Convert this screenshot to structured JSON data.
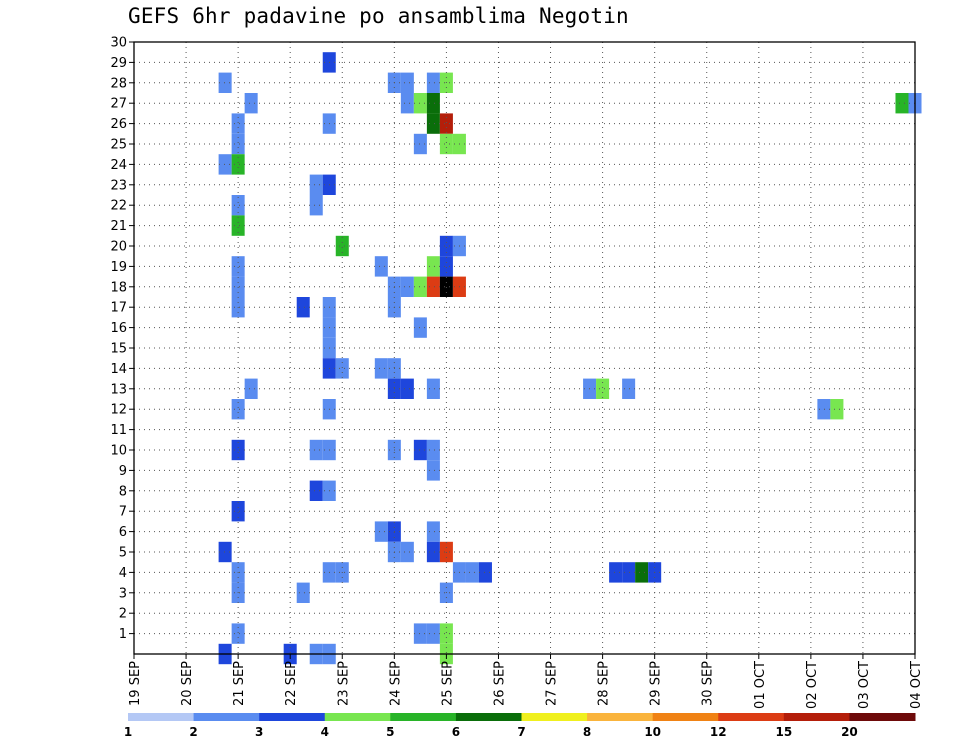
{
  "chart_data": {
    "type": "heatmap",
    "title": "GEFS 6hr padavine po ansamblima Negotin",
    "x_tick_labels": [
      "19 SEP",
      "20 SEP",
      "21 SEP",
      "22 SEP",
      "23 SEP",
      "24 SEP",
      "25 SEP",
      "26 SEP",
      "27 SEP",
      "28 SEP",
      "29 SEP",
      "30 SEP",
      "01 OCT",
      "02 OCT",
      "03 OCT",
      "04 OCT"
    ],
    "y_tick_labels": [
      "1",
      "2",
      "3",
      "4",
      "5",
      "6",
      "7",
      "8",
      "9",
      "10",
      "11",
      "12",
      "13",
      "14",
      "15",
      "16",
      "17",
      "18",
      "19",
      "20",
      "21",
      "22",
      "23",
      "24",
      "25",
      "26",
      "27",
      "28",
      "29",
      "30"
    ],
    "xlim_days": [
      0,
      15
    ],
    "ylim": [
      0,
      30
    ],
    "time_step_hours": 6,
    "grid": "dotted",
    "colorbar": {
      "levels": [
        "1",
        "2",
        "3",
        "4",
        "5",
        "6",
        "7",
        "8",
        "10",
        "12",
        "15",
        "20"
      ],
      "colors": [
        "#b4c8f5",
        "#5a8cf0",
        "#1e46dc",
        "#78e650",
        "#28b428",
        "#0a6e0a",
        "#f0f01e",
        "#fab43c",
        "#f08214",
        "#dc3c14",
        "#b41e0a",
        "#6e0a0a"
      ]
    },
    "cells": [
      [
        1.75,
        28,
        1
      ],
      [
        1.75,
        24,
        1
      ],
      [
        1.75,
        5,
        2
      ],
      [
        1.75,
        0,
        2
      ],
      [
        2.0,
        26,
        1
      ],
      [
        2.0,
        25,
        1
      ],
      [
        2.0,
        24,
        4
      ],
      [
        2.0,
        22,
        1
      ],
      [
        2.0,
        21,
        4
      ],
      [
        2.0,
        19,
        1
      ],
      [
        2.0,
        18,
        1
      ],
      [
        2.0,
        17,
        1
      ],
      [
        2.0,
        12,
        1
      ],
      [
        2.0,
        10,
        2
      ],
      [
        2.0,
        7,
        2
      ],
      [
        2.0,
        4,
        1
      ],
      [
        2.0,
        3,
        1
      ],
      [
        2.0,
        1,
        1
      ],
      [
        2.25,
        27,
        1
      ],
      [
        2.25,
        13,
        1
      ],
      [
        3.0,
        0,
        2
      ],
      [
        3.25,
        17,
        2
      ],
      [
        3.5,
        23,
        1
      ],
      [
        3.5,
        22,
        1
      ],
      [
        3.5,
        10,
        1
      ],
      [
        3.5,
        8,
        2
      ],
      [
        3.5,
        0,
        1
      ],
      [
        3.25,
        3,
        1
      ],
      [
        3.75,
        29,
        2
      ],
      [
        3.75,
        26,
        1
      ],
      [
        3.75,
        23,
        2
      ],
      [
        3.75,
        17,
        1
      ],
      [
        3.75,
        16,
        1
      ],
      [
        3.75,
        15,
        1
      ],
      [
        3.75,
        14,
        2
      ],
      [
        3.75,
        12,
        1
      ],
      [
        3.75,
        10,
        1
      ],
      [
        3.75,
        8,
        1
      ],
      [
        3.75,
        4,
        1
      ],
      [
        3.75,
        0,
        1
      ],
      [
        4.0,
        20,
        4
      ],
      [
        4.0,
        14,
        1
      ],
      [
        4.0,
        4,
        1
      ],
      [
        4.75,
        19,
        1
      ],
      [
        4.75,
        14,
        1
      ],
      [
        5.0,
        14,
        1
      ],
      [
        4.75,
        6,
        1
      ],
      [
        5.0,
        28,
        1
      ],
      [
        5.0,
        18,
        1
      ],
      [
        5.0,
        17,
        1
      ],
      [
        5.0,
        13,
        2
      ],
      [
        5.0,
        10,
        1
      ],
      [
        5.0,
        6,
        2
      ],
      [
        5.0,
        5,
        1
      ],
      [
        5.25,
        28,
        1
      ],
      [
        5.25,
        27,
        1
      ],
      [
        5.25,
        18,
        1
      ],
      [
        5.25,
        13,
        2
      ],
      [
        5.25,
        5,
        1
      ],
      [
        5.5,
        27,
        3
      ],
      [
        5.5,
        25,
        1
      ],
      [
        5.5,
        18,
        3
      ],
      [
        5.5,
        16,
        1
      ],
      [
        5.5,
        10,
        2
      ],
      [
        5.5,
        1,
        1
      ],
      [
        5.75,
        28,
        1
      ],
      [
        5.75,
        27,
        5
      ],
      [
        5.75,
        26,
        5
      ],
      [
        5.75,
        19,
        3
      ],
      [
        5.75,
        18,
        9
      ],
      [
        5.75,
        13,
        1
      ],
      [
        5.75,
        10,
        1
      ],
      [
        5.75,
        9,
        1
      ],
      [
        5.75,
        6,
        1
      ],
      [
        5.75,
        5,
        2
      ],
      [
        5.75,
        1,
        1
      ],
      [
        6.0,
        28,
        3
      ],
      [
        6.0,
        26,
        10
      ],
      [
        6.0,
        25,
        3
      ],
      [
        6.0,
        20,
        2
      ],
      [
        6.0,
        19,
        2
      ],
      [
        6.0,
        18,
        12
      ],
      [
        6.0,
        5,
        9
      ],
      [
        6.0,
        3,
        1
      ],
      [
        6.0,
        1,
        3
      ],
      [
        6.0,
        0,
        3
      ],
      [
        6.25,
        25,
        3
      ],
      [
        6.25,
        20,
        1
      ],
      [
        6.25,
        18,
        9
      ],
      [
        6.25,
        4,
        1
      ],
      [
        6.5,
        4,
        1
      ],
      [
        6.75,
        4,
        2
      ],
      [
        8.75,
        13,
        1
      ],
      [
        9.0,
        13,
        3
      ],
      [
        9.25,
        4,
        2
      ],
      [
        9.5,
        13,
        1
      ],
      [
        9.5,
        4,
        2
      ],
      [
        9.75,
        4,
        5
      ],
      [
        10.0,
        4,
        2
      ],
      [
        13.25,
        12,
        1
      ],
      [
        13.5,
        12,
        3
      ],
      [
        14.75,
        27,
        4
      ],
      [
        15.0,
        27,
        1
      ]
    ]
  }
}
